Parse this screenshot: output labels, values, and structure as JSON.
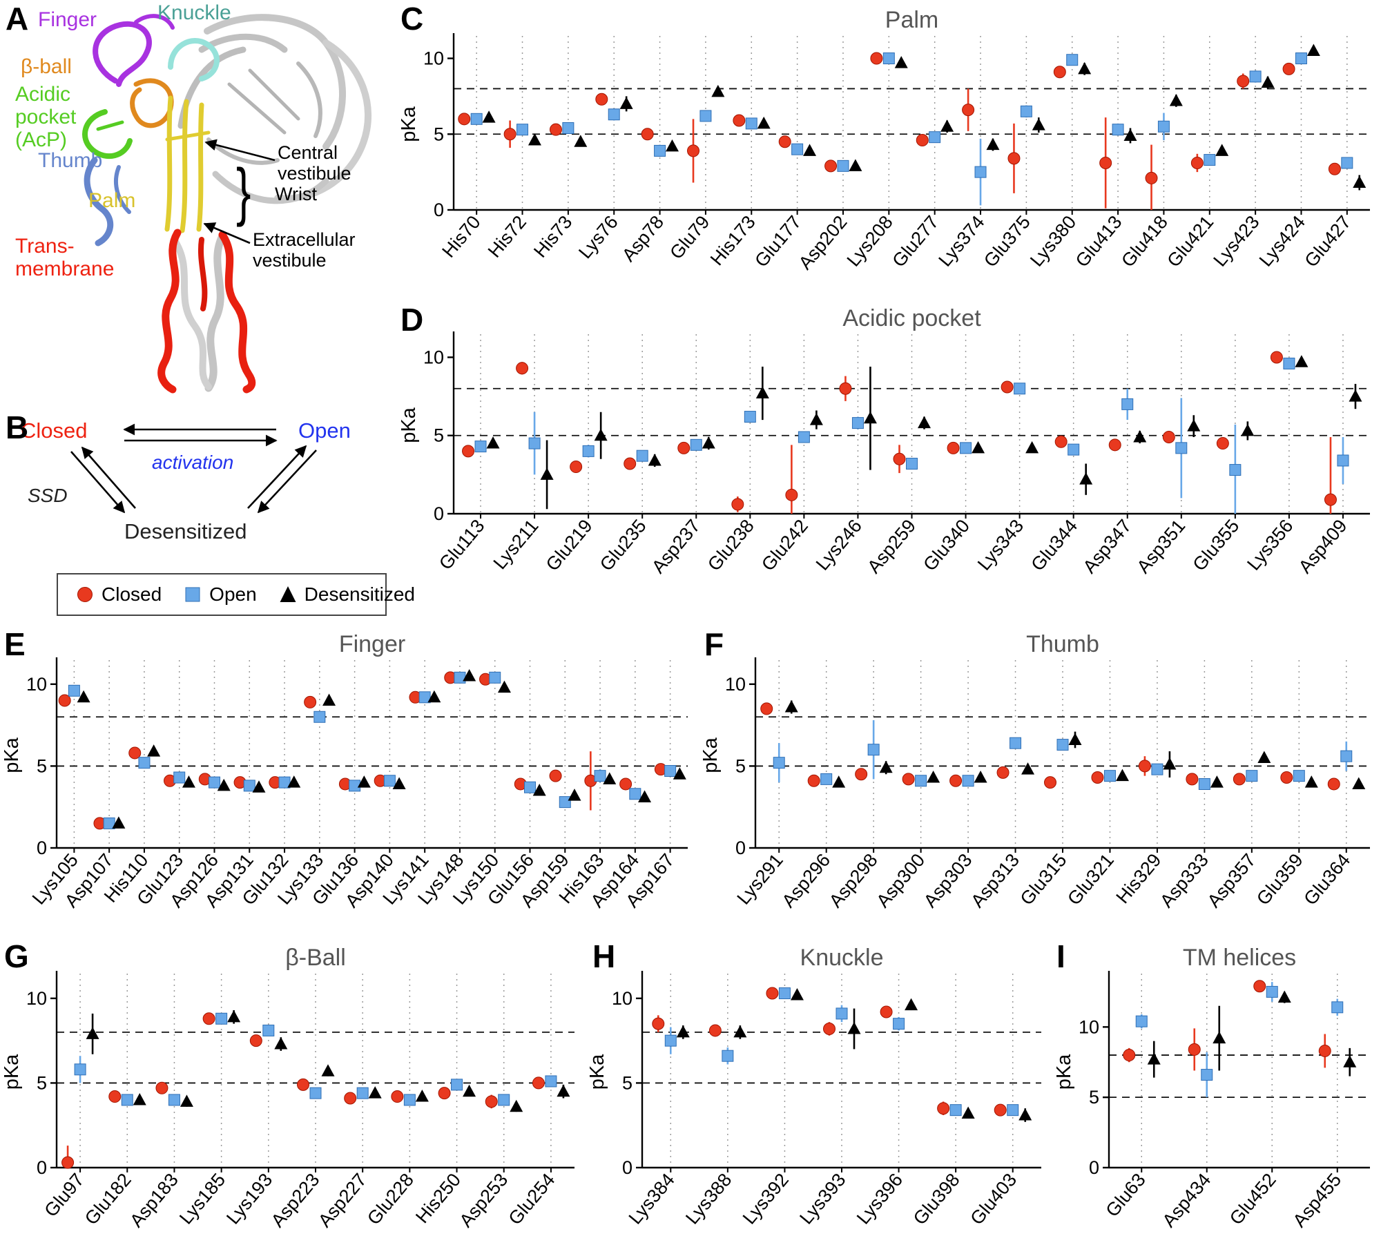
{
  "panelA": {
    "letter": "A",
    "structure_labels": [
      {
        "text": "Finger",
        "color": "#a832e0"
      },
      {
        "text": "Knuckle",
        "color": "#4aa096"
      },
      {
        "text": "β-ball",
        "color": "#e0891e"
      },
      {
        "text": "Acidic\npocket\n(AcP)",
        "color": "#55cc22"
      },
      {
        "text": "Thumb",
        "color": "#6585cc"
      },
      {
        "text": "Palm",
        "color": "#d8c22c"
      },
      {
        "text": "Trans-\nmembrane",
        "color": "#ee2211"
      }
    ],
    "annotations": [
      {
        "text": "Central\nvestibule"
      },
      {
        "text": "Wrist"
      },
      {
        "text": "Extracellular\nvestibule"
      }
    ],
    "wrist_brace": "}"
  },
  "panelB": {
    "letter": "B",
    "states": [
      {
        "text": "Closed",
        "color": "#ee2211"
      },
      {
        "text": "Open",
        "color": "#2233ee"
      },
      {
        "text": "Desensitized",
        "color": "#222222"
      }
    ],
    "transition_labels": [
      {
        "text": "activation",
        "color": "#2233ee"
      },
      {
        "text": "SSD",
        "color": "#222222"
      }
    ]
  },
  "legend": {
    "items": [
      {
        "label": "Closed",
        "marker": "circle",
        "color": "#e8391f"
      },
      {
        "label": "Open",
        "marker": "square",
        "color": "#68a8e8"
      },
      {
        "label": "Desensitized",
        "marker": "triangle",
        "color": "#000000"
      }
    ]
  },
  "chart_data": [
    {
      "panel": "C",
      "type": "scatter",
      "title": "Palm",
      "ylabel": "pKa",
      "ylim": [
        0,
        11.3
      ],
      "yticks": [
        0,
        5,
        10
      ],
      "dashed_lines": [
        5,
        8
      ],
      "grid": "vertical-dotted",
      "categories": [
        "His70",
        "His72",
        "His73",
        "Lys76",
        "Asp78",
        "Glu79",
        "His173",
        "Glu177",
        "Asp202",
        "Lys208",
        "Glu277",
        "Lys374",
        "Glu375",
        "Lys380",
        "Glu413",
        "Glu418",
        "Glu421",
        "Lys423",
        "Lys424",
        "Glu427"
      ],
      "series": [
        {
          "name": "Closed",
          "marker": "circle",
          "color": "#e8391f",
          "values": [
            6.0,
            5.0,
            5.3,
            7.3,
            5.0,
            3.9,
            5.9,
            4.5,
            2.9,
            10.0,
            4.6,
            6.6,
            3.4,
            9.1,
            3.1,
            2.1,
            3.1,
            8.5,
            9.3,
            2.7
          ],
          "err": [
            0.2,
            0.9,
            0.3,
            0.2,
            0.3,
            2.1,
            0.2,
            0.3,
            0.3,
            0.2,
            0.2,
            1.4,
            2.3,
            0.4,
            3.0,
            2.2,
            0.6,
            0.5,
            0.3,
            0.2
          ]
        },
        {
          "name": "Open",
          "marker": "square",
          "color": "#68a8e8",
          "values": [
            6.0,
            5.3,
            5.4,
            6.3,
            3.9,
            6.2,
            5.7,
            4.0,
            2.9,
            10.0,
            4.8,
            2.5,
            6.5,
            9.9,
            5.3,
            5.5,
            3.3,
            8.8,
            10.0,
            3.1
          ],
          "err": [
            0.2,
            0.3,
            0.2,
            0.4,
            0.4,
            0.3,
            0.2,
            0.3,
            0.2,
            0.2,
            0.3,
            2.2,
            0.4,
            0.2,
            0.4,
            0.9,
            0.3,
            0.4,
            0.3,
            0.2
          ]
        },
        {
          "name": "Desensitized",
          "marker": "triangle",
          "color": "#000000",
          "values": [
            6.1,
            4.6,
            4.5,
            7.0,
            4.2,
            7.8,
            5.7,
            3.9,
            2.9,
            9.7,
            5.5,
            4.3,
            5.6,
            9.3,
            4.9,
            7.2,
            3.9,
            8.4,
            10.5,
            1.8
          ],
          "err": [
            0.2,
            0.3,
            0.3,
            0.5,
            0.3,
            0.2,
            0.3,
            0.2,
            0.3,
            0.3,
            0.4,
            0.4,
            0.5,
            0.4,
            0.5,
            0.4,
            0.3,
            0.4,
            0.2,
            0.5
          ]
        }
      ]
    },
    {
      "panel": "D",
      "type": "scatter",
      "title": "Acidic pocket",
      "ylabel": "pKa",
      "ylim": [
        0,
        11.3
      ],
      "yticks": [
        0,
        5,
        10
      ],
      "dashed_lines": [
        5,
        8
      ],
      "grid": "vertical-dotted",
      "categories": [
        "Glu113",
        "Lys211",
        "Glu219",
        "Glu235",
        "Asp237",
        "Glu238",
        "Glu242",
        "Lys246",
        "Asp259",
        "Glu340",
        "Lys343",
        "Glu344",
        "Asp347",
        "Asp351",
        "Glu355",
        "Lys356",
        "Asp409"
      ],
      "series": [
        {
          "name": "Closed",
          "marker": "circle",
          "color": "#e8391f",
          "values": [
            4.0,
            9.3,
            3.0,
            3.2,
            4.2,
            0.6,
            1.2,
            8.0,
            3.5,
            4.2,
            8.1,
            4.6,
            4.4,
            4.9,
            4.5,
            10.0,
            0.9
          ],
          "err": [
            0.2,
            0.4,
            0.3,
            0.2,
            0.2,
            0.5,
            3.2,
            0.8,
            0.9,
            0.2,
            0.3,
            0.3,
            0.3,
            0.4,
            0.3,
            0.2,
            4.0
          ]
        },
        {
          "name": "Open",
          "marker": "square",
          "color": "#68a8e8",
          "values": [
            4.3,
            4.5,
            4.0,
            3.7,
            4.4,
            6.2,
            4.9,
            5.8,
            3.2,
            4.2,
            8.0,
            4.1,
            7.0,
            4.2,
            2.8,
            9.6,
            3.4
          ],
          "err": [
            0.3,
            2.0,
            0.4,
            0.3,
            0.3,
            0.3,
            0.2,
            0.4,
            0.3,
            0.2,
            0.3,
            0.3,
            1.0,
            3.2,
            2.9,
            0.3,
            1.5
          ]
        },
        {
          "name": "Desensitized",
          "marker": "triangle",
          "color": "#000000",
          "values": [
            4.5,
            2.5,
            5.0,
            3.4,
            4.5,
            7.7,
            6.0,
            6.1,
            5.8,
            4.2,
            4.2,
            2.2,
            4.9,
            5.6,
            5.3,
            9.7,
            7.5
          ],
          "err": [
            0.3,
            2.2,
            1.5,
            0.4,
            0.4,
            1.7,
            0.6,
            3.3,
            0.4,
            0.2,
            0.2,
            1.0,
            0.4,
            0.7,
            0.6,
            0.3,
            0.8
          ]
        }
      ]
    },
    {
      "panel": "E",
      "type": "scatter",
      "title": "Finger",
      "ylabel": "pKa",
      "ylim": [
        0,
        11.3
      ],
      "yticks": [
        0,
        5,
        10
      ],
      "dashed_lines": [
        5,
        8
      ],
      "grid": "vertical-dotted",
      "categories": [
        "Lys105",
        "Asp107",
        "His110",
        "Glu123",
        "Asp126",
        "Asp131",
        "Glu132",
        "Lys133",
        "Glu136",
        "Asp140",
        "Lys141",
        "Lys148",
        "Lys150",
        "Glu156",
        "Asp159",
        "His163",
        "Asp164",
        "Asp167"
      ],
      "series": [
        {
          "name": "Closed",
          "marker": "circle",
          "color": "#e8391f",
          "values": [
            9.0,
            1.5,
            5.8,
            4.1,
            4.2,
            4.0,
            4.0,
            8.9,
            3.9,
            4.1,
            9.2,
            10.4,
            10.3,
            3.9,
            4.4,
            4.1,
            3.9,
            4.8
          ],
          "err": [
            0.3,
            0.2,
            0.2,
            0.2,
            0.2,
            0.2,
            0.2,
            0.2,
            0.2,
            0.2,
            0.2,
            0.2,
            0.2,
            0.2,
            0.3,
            1.8,
            0.3,
            0.2
          ]
        },
        {
          "name": "Open",
          "marker": "square",
          "color": "#68a8e8",
          "values": [
            9.6,
            1.5,
            5.2,
            4.3,
            4.0,
            3.8,
            4.0,
            8.0,
            3.8,
            4.1,
            9.2,
            10.4,
            10.4,
            3.7,
            2.8,
            4.4,
            3.3,
            4.7
          ],
          "err": [
            0.3,
            0.2,
            0.2,
            0.2,
            0.2,
            0.2,
            0.2,
            0.3,
            0.2,
            0.2,
            0.2,
            0.2,
            0.2,
            0.3,
            0.3,
            0.4,
            0.2,
            0.2
          ]
        },
        {
          "name": "Desensitized",
          "marker": "triangle",
          "color": "#000000",
          "values": [
            9.2,
            1.5,
            5.9,
            4.0,
            3.8,
            3.7,
            4.0,
            9.0,
            4.0,
            3.9,
            9.2,
            10.5,
            9.8,
            3.5,
            3.2,
            4.2,
            3.1,
            4.5
          ],
          "err": [
            0.2,
            0.2,
            0.2,
            0.2,
            0.2,
            0.3,
            0.2,
            0.3,
            0.2,
            0.2,
            0.2,
            0.2,
            0.3,
            0.3,
            0.3,
            0.3,
            0.2,
            0.3
          ]
        }
      ]
    },
    {
      "panel": "F",
      "type": "scatter",
      "title": "Thumb",
      "ylabel": "pKa",
      "ylim": [
        0,
        11.3
      ],
      "yticks": [
        0,
        5,
        10
      ],
      "dashed_lines": [
        5,
        8
      ],
      "grid": "vertical-dotted",
      "categories": [
        "Lys291",
        "Asp296",
        "Asp298",
        "Asp300",
        "Asp303",
        "Asp313",
        "Glu315",
        "Glu321",
        "His329",
        "Asp333",
        "Asp357",
        "Glu359",
        "Glu364"
      ],
      "series": [
        {
          "name": "Closed",
          "marker": "circle",
          "color": "#e8391f",
          "values": [
            8.5,
            4.1,
            4.5,
            4.2,
            4.1,
            4.6,
            4.0,
            4.3,
            5.0,
            4.2,
            4.2,
            4.3,
            3.9
          ],
          "err": [
            0.3,
            0.2,
            0.3,
            0.2,
            0.2,
            0.3,
            0.2,
            0.2,
            0.6,
            0.3,
            0.2,
            0.2,
            0.2
          ]
        },
        {
          "name": "Open",
          "marker": "square",
          "color": "#68a8e8",
          "values": [
            5.2,
            4.2,
            6.0,
            4.1,
            4.1,
            6.4,
            6.3,
            4.4,
            4.8,
            3.9,
            4.4,
            4.4,
            5.6
          ],
          "err": [
            1.2,
            0.2,
            1.8,
            0.2,
            0.2,
            0.3,
            0.3,
            0.2,
            0.3,
            0.2,
            0.3,
            0.2,
            0.9
          ]
        },
        {
          "name": "Desensitized",
          "marker": "triangle",
          "color": "#000000",
          "values": [
            8.6,
            4.0,
            4.9,
            4.3,
            4.3,
            4.8,
            6.6,
            4.4,
            5.1,
            4.0,
            5.5,
            4.0,
            3.9
          ],
          "err": [
            0.4,
            0.2,
            0.4,
            0.2,
            0.2,
            0.3,
            0.5,
            0.2,
            0.8,
            0.2,
            0.3,
            0.2,
            0.2
          ]
        }
      ]
    },
    {
      "panel": "G",
      "type": "scatter",
      "title": "β-Ball",
      "ylabel": "pKa",
      "ylim": [
        0,
        11.3
      ],
      "yticks": [
        0,
        5,
        10
      ],
      "dashed_lines": [
        5,
        8
      ],
      "grid": "vertical-dotted",
      "categories": [
        "Glu97",
        "Glu182",
        "Asp183",
        "Lys185",
        "Lys193",
        "Asp223",
        "Asp227",
        "Glu228",
        "His250",
        "Asp253",
        "Glu254"
      ],
      "series": [
        {
          "name": "Closed",
          "marker": "circle",
          "color": "#e8391f",
          "values": [
            0.3,
            4.2,
            4.7,
            8.8,
            7.5,
            4.9,
            4.1,
            4.2,
            4.4,
            3.9,
            5.0
          ],
          "err": [
            1.0,
            0.2,
            0.3,
            0.3,
            0.3,
            0.2,
            0.2,
            0.2,
            0.2,
            0.4,
            0.2
          ]
        },
        {
          "name": "Open",
          "marker": "square",
          "color": "#68a8e8",
          "values": [
            5.8,
            4.0,
            4.0,
            8.8,
            8.1,
            4.4,
            4.4,
            4.0,
            4.9,
            4.0,
            5.1
          ],
          "err": [
            0.8,
            0.2,
            0.2,
            0.3,
            0.2,
            0.3,
            0.2,
            0.2,
            0.2,
            0.3,
            0.2
          ]
        },
        {
          "name": "Desensitized",
          "marker": "triangle",
          "color": "#000000",
          "values": [
            7.9,
            4.0,
            3.9,
            8.9,
            7.3,
            5.7,
            4.4,
            4.2,
            4.5,
            3.6,
            4.5
          ],
          "err": [
            1.2,
            0.2,
            0.3,
            0.4,
            0.4,
            0.3,
            0.2,
            0.3,
            0.2,
            0.3,
            0.4
          ]
        }
      ]
    },
    {
      "panel": "H",
      "type": "scatter",
      "title": "Knuckle",
      "ylabel": "pKa",
      "ylim": [
        0,
        11.3
      ],
      "yticks": [
        0,
        5,
        10
      ],
      "dashed_lines": [
        5,
        8
      ],
      "grid": "vertical-dotted",
      "categories": [
        "Lys384",
        "Lys388",
        "Lys392",
        "Lys393",
        "Lys396",
        "Glu398",
        "Glu403"
      ],
      "series": [
        {
          "name": "Closed",
          "marker": "circle",
          "color": "#e8391f",
          "values": [
            8.5,
            8.1,
            10.3,
            8.2,
            9.2,
            3.5,
            3.4
          ],
          "err": [
            0.5,
            0.3,
            0.2,
            0.4,
            0.3,
            0.4,
            0.3
          ]
        },
        {
          "name": "Open",
          "marker": "square",
          "color": "#68a8e8",
          "values": [
            7.5,
            6.6,
            10.3,
            9.1,
            8.5,
            3.4,
            3.4
          ],
          "err": [
            0.8,
            0.5,
            0.2,
            0.5,
            0.4,
            0.2,
            0.2
          ]
        },
        {
          "name": "Desensitized",
          "marker": "triangle",
          "color": "#000000",
          "values": [
            8.0,
            8.0,
            10.2,
            8.2,
            9.6,
            3.2,
            3.1
          ],
          "err": [
            0.4,
            0.4,
            0.2,
            1.2,
            0.3,
            0.3,
            0.4
          ]
        }
      ]
    },
    {
      "panel": "I",
      "type": "scatter",
      "title": "TM helices",
      "ylabel": "pKa",
      "ylim": [
        0,
        13.6
      ],
      "yticks": [
        0,
        5,
        10
      ],
      "dashed_lines": [
        5,
        8
      ],
      "grid": "vertical-dotted",
      "categories": [
        "Glu63",
        "Asp434",
        "Glu452",
        "Asp455"
      ],
      "series": [
        {
          "name": "Closed",
          "marker": "circle",
          "color": "#e8391f",
          "values": [
            8.0,
            8.4,
            12.9,
            8.3
          ],
          "err": [
            0.5,
            1.5,
            0.4,
            1.2
          ]
        },
        {
          "name": "Open",
          "marker": "square",
          "color": "#68a8e8",
          "values": [
            10.4,
            6.6,
            12.5,
            11.4
          ],
          "err": [
            0.5,
            1.6,
            0.7,
            0.6
          ]
        },
        {
          "name": "Desensitized",
          "marker": "triangle",
          "color": "#000000",
          "values": [
            7.7,
            9.2,
            12.1,
            7.5
          ],
          "err": [
            1.3,
            2.3,
            0.4,
            1.0
          ]
        }
      ]
    }
  ]
}
